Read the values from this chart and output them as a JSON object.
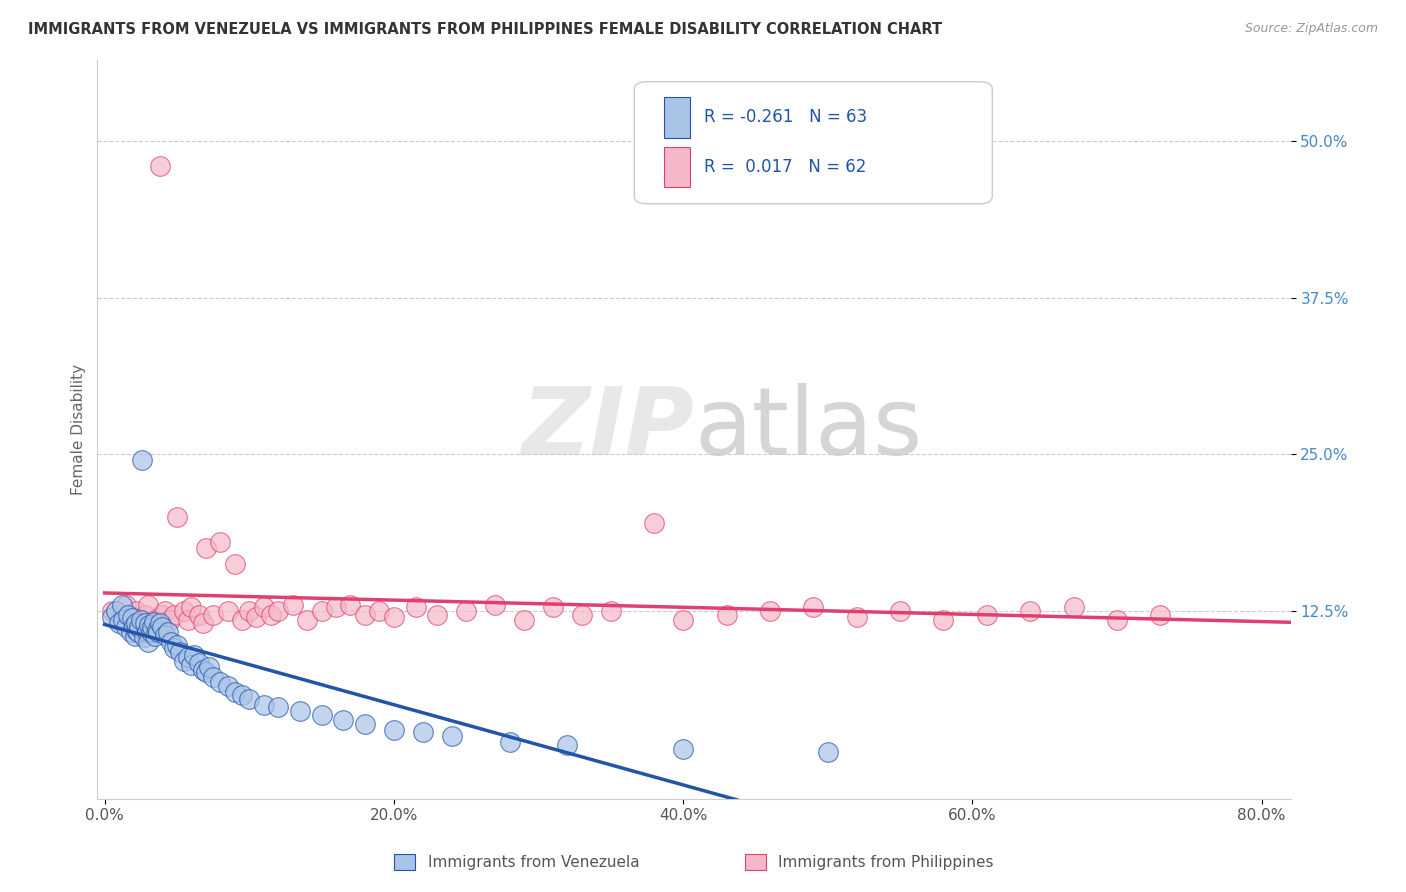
{
  "title": "IMMIGRANTS FROM VENEZUELA VS IMMIGRANTS FROM PHILIPPINES FEMALE DISABILITY CORRELATION CHART",
  "source": "Source: ZipAtlas.com",
  "ylabel": "Female Disability",
  "legend_labels": [
    "Immigrants from Venezuela",
    "Immigrants from Philippines"
  ],
  "r_venezuela": -0.261,
  "n_venezuela": 63,
  "r_philippines": 0.017,
  "n_philippines": 62,
  "color_venezuela": "#aac4e8",
  "color_philippines": "#f4b8c8",
  "line_color_venezuela": "#2255aa",
  "line_color_philippines": "#e04070",
  "background_color": "#ffffff",
  "xlim": [
    -0.005,
    0.82
  ],
  "ylim": [
    -0.025,
    0.565
  ],
  "xticks": [
    0.0,
    0.2,
    0.4,
    0.6,
    0.8
  ],
  "xtick_labels": [
    "0.0%",
    "20.0%",
    "40.0%",
    "60.0%",
    "80.0%"
  ],
  "yticks": [
    0.125,
    0.25,
    0.375,
    0.5
  ],
  "ytick_labels": [
    "12.5%",
    "25.0%",
    "37.5%",
    "50.0%"
  ],
  "venezuela_x": [
    0.005,
    0.008,
    0.01,
    0.012,
    0.013,
    0.015,
    0.016,
    0.018,
    0.019,
    0.02,
    0.021,
    0.022,
    0.022,
    0.023,
    0.024,
    0.025,
    0.026,
    0.027,
    0.028,
    0.029,
    0.03,
    0.031,
    0.032,
    0.033,
    0.034,
    0.035,
    0.036,
    0.037,
    0.038,
    0.04,
    0.042,
    0.044,
    0.046,
    0.048,
    0.05,
    0.052,
    0.055,
    0.058,
    0.06,
    0.062,
    0.065,
    0.068,
    0.07,
    0.072,
    0.075,
    0.08,
    0.085,
    0.09,
    0.095,
    0.1,
    0.11,
    0.12,
    0.135,
    0.15,
    0.165,
    0.18,
    0.2,
    0.22,
    0.24,
    0.28,
    0.32,
    0.4,
    0.5
  ],
  "venezuela_y": [
    0.12,
    0.125,
    0.115,
    0.13,
    0.118,
    0.112,
    0.122,
    0.108,
    0.119,
    0.113,
    0.105,
    0.11,
    0.115,
    0.108,
    0.112,
    0.118,
    0.245,
    0.104,
    0.115,
    0.108,
    0.1,
    0.114,
    0.108,
    0.112,
    0.116,
    0.105,
    0.11,
    0.108,
    0.115,
    0.112,
    0.106,
    0.108,
    0.1,
    0.095,
    0.098,
    0.092,
    0.085,
    0.088,
    0.082,
    0.09,
    0.083,
    0.078,
    0.076,
    0.08,
    0.072,
    0.068,
    0.065,
    0.06,
    0.058,
    0.055,
    0.05,
    0.048,
    0.045,
    0.042,
    0.038,
    0.035,
    0.03,
    0.028,
    0.025,
    0.02,
    0.018,
    0.015,
    0.012
  ],
  "philippines_x": [
    0.005,
    0.01,
    0.015,
    0.018,
    0.02,
    0.022,
    0.025,
    0.028,
    0.03,
    0.032,
    0.035,
    0.038,
    0.04,
    0.042,
    0.045,
    0.048,
    0.05,
    0.055,
    0.058,
    0.06,
    0.065,
    0.068,
    0.07,
    0.075,
    0.08,
    0.085,
    0.09,
    0.095,
    0.1,
    0.105,
    0.11,
    0.115,
    0.12,
    0.13,
    0.14,
    0.15,
    0.16,
    0.17,
    0.18,
    0.19,
    0.2,
    0.215,
    0.23,
    0.25,
    0.27,
    0.29,
    0.31,
    0.33,
    0.35,
    0.38,
    0.4,
    0.43,
    0.46,
    0.49,
    0.52,
    0.55,
    0.58,
    0.61,
    0.64,
    0.67,
    0.7,
    0.73
  ],
  "philippines_y": [
    0.125,
    0.118,
    0.13,
    0.12,
    0.115,
    0.125,
    0.118,
    0.122,
    0.13,
    0.115,
    0.118,
    0.48,
    0.122,
    0.125,
    0.118,
    0.122,
    0.2,
    0.125,
    0.118,
    0.128,
    0.122,
    0.115,
    0.175,
    0.122,
    0.18,
    0.125,
    0.162,
    0.118,
    0.125,
    0.12,
    0.128,
    0.122,
    0.125,
    0.13,
    0.118,
    0.125,
    0.128,
    0.13,
    0.122,
    0.125,
    0.12,
    0.128,
    0.122,
    0.125,
    0.13,
    0.118,
    0.128,
    0.122,
    0.125,
    0.195,
    0.118,
    0.122,
    0.125,
    0.128,
    0.12,
    0.125,
    0.118,
    0.122,
    0.125,
    0.128,
    0.118,
    0.122
  ],
  "watermark_zip": "ZIP",
  "watermark_atlas": "atlas",
  "marker_size": 200
}
